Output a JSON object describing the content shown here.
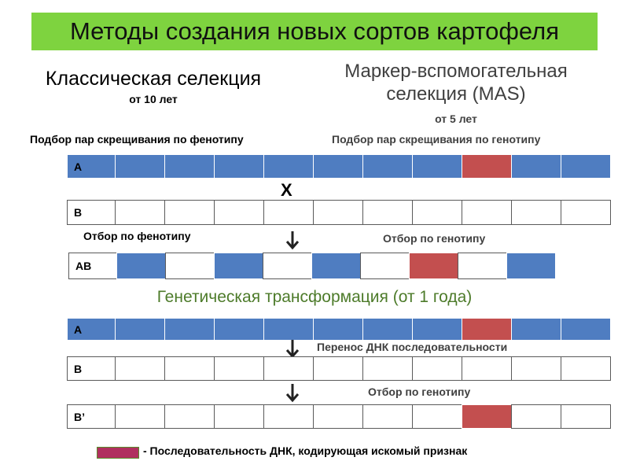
{
  "title": "Методы создания новых сортов картофеля",
  "classic": {
    "title": "Классическая селекция",
    "duration": "от 10 лет"
  },
  "mas": {
    "title_line1": "Маркер-вспомогательная",
    "title_line2": "селекция (MAS)",
    "duration": "от 5 лет"
  },
  "labels": {
    "phenotype_pairs": "Подбор пар скрещивания по фенотипу",
    "genotype_pairs": "Подбор пар скрещивания по генотипу",
    "phenotype_select": "Отбор по фенотипу",
    "genotype_select_1": "Отбор по генотипу",
    "transform_title": "Генетическая трансформация (от 1 года)",
    "dna_transfer": "Перенос ДНК последовательности",
    "genotype_select_2": "Отбор по генотипу"
  },
  "cross_symbol": "X",
  "colors": {
    "blue": "#4f7dc1",
    "red": "#c34f4f",
    "green": "#7ed33f",
    "legend": "#b0305f"
  },
  "bars": [
    {
      "label": "A",
      "segments": [
        "blue",
        "blue",
        "blue",
        "blue",
        "blue",
        "blue",
        "blue",
        "red",
        "blue",
        "blue"
      ]
    },
    {
      "label": "B",
      "segments": [
        "white",
        "white",
        "white",
        "white",
        "white",
        "white",
        "white",
        "white",
        "white",
        "white"
      ]
    },
    {
      "label": "AB",
      "segments": [
        "blue",
        "white",
        "blue",
        "white",
        "blue",
        "white",
        "red",
        "white",
        "blue"
      ]
    },
    {
      "label": "A",
      "segments": [
        "blue",
        "blue",
        "blue",
        "blue",
        "blue",
        "blue",
        "blue",
        "red",
        "blue",
        "blue"
      ]
    },
    {
      "label": "B",
      "segments": [
        "white",
        "white",
        "white",
        "white",
        "white",
        "white",
        "white",
        "white",
        "white",
        "white"
      ]
    },
    {
      "label": "B’",
      "segments": [
        "white",
        "white",
        "white",
        "white",
        "white",
        "white",
        "white",
        "red",
        "white",
        "white"
      ]
    }
  ],
  "legend": {
    "text": "- Последовательность ДНК, кодирующая искомый признак"
  }
}
